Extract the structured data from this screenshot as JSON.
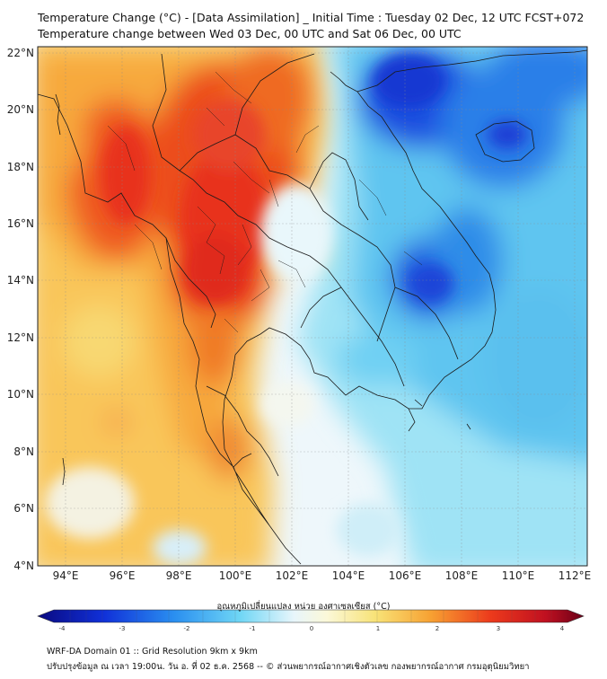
{
  "header": {
    "title_line1": "Temperature Change (°C) - [Data Assimilation] _ Initial Time : Tuesday 02 Dec, 12 UTC FCST+072",
    "title_line2": "Temperature change between Wed 03 Dec, 00 UTC and Sat 06 Dec, 00 UTC"
  },
  "map": {
    "lon_labels": [
      "94°E",
      "96°E",
      "98°E",
      "100°E",
      "102°E",
      "104°E",
      "106°E",
      "108°E",
      "110°E",
      "112°E"
    ],
    "lat_labels": [
      "22°N",
      "20°N",
      "18°N",
      "16°N",
      "14°N",
      "12°N",
      "10°N",
      "8°N",
      "6°N",
      "4°N"
    ],
    "lon_range": [
      93,
      112.5
    ],
    "lat_range": [
      4,
      22.2
    ],
    "warm_color": "#e8321e",
    "cool_color": "#1f4fe0"
  },
  "colorbar": {
    "label": "อุณหภูมิเปลี่ยนแปลง หน่วย องศาเซลเซียส (°C)",
    "ticks": [
      "-4",
      "-3",
      "-2",
      "-1",
      "0",
      "1",
      "2",
      "3",
      "4"
    ],
    "range": [
      -4,
      4
    ]
  },
  "footer": {
    "line1": "WRF-DA Domain 01 :: Grid Resolution 9km x 9km",
    "line2": "ปรับปรุงข้อมูล ณ เวลา 19:00น. วัน อ. ที่ 02 ธ.ค. 2568 -- © ส่วนพยากรณ์อากาศเชิงตัวเลข กองพยากรณ์อากาศ กรมอุตุนิยมวิทยา"
  }
}
